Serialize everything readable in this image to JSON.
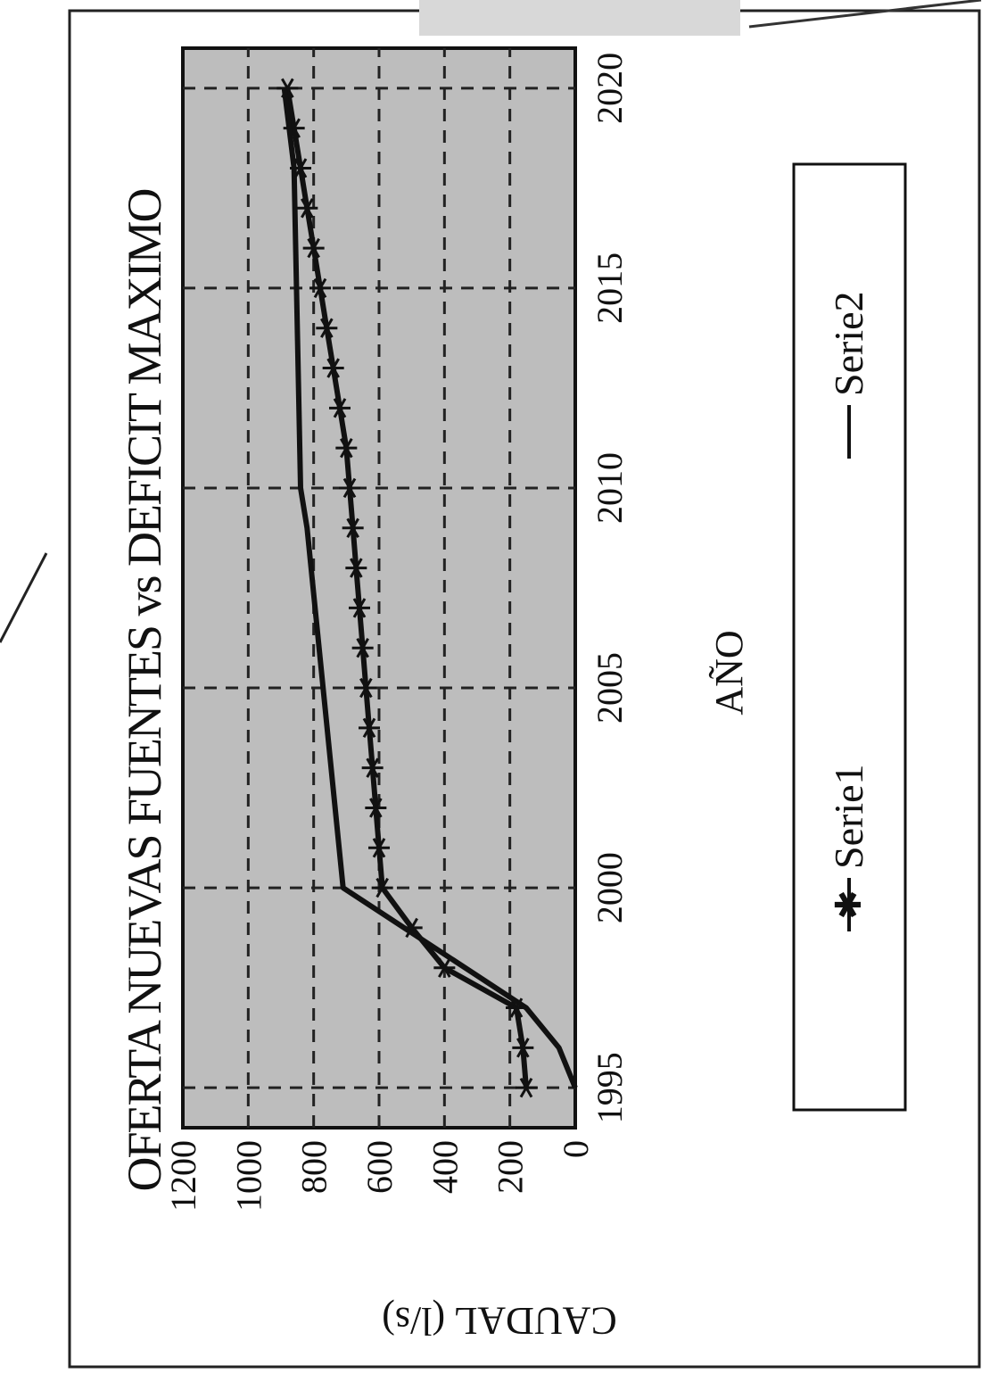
{
  "chart_data": {
    "type": "line",
    "title": "OFERTA NUEVAS FUENTES vs DEFICIT MAXIMO",
    "xlabel": "AÑO",
    "ylabel": "CAUDAL (l/s)",
    "x_ticks": [
      "1995",
      "2000",
      "2005",
      "2010",
      "2015",
      "2020"
    ],
    "y_ticks": [
      "0",
      "200",
      "400",
      "600",
      "800",
      "1000",
      "1200"
    ],
    "xlim": [
      1994,
      2021
    ],
    "ylim": [
      0,
      1200
    ],
    "grid": true,
    "legend_position": "bottom",
    "series": [
      {
        "name": "Serie1",
        "marker": "star",
        "x": [
          1995,
          1996,
          1997,
          1998,
          1999,
          2000,
          2001,
          2002,
          2003,
          2004,
          2005,
          2006,
          2007,
          2008,
          2009,
          2010,
          2011,
          2012,
          2013,
          2014,
          2015,
          2016,
          2017,
          2018,
          2019,
          2020
        ],
        "y": [
          150,
          160,
          180,
          400,
          500,
          590,
          600,
          610,
          620,
          630,
          640,
          650,
          660,
          670,
          680,
          690,
          700,
          720,
          740,
          760,
          780,
          800,
          820,
          840,
          860,
          880
        ]
      },
      {
        "name": "Serie2",
        "marker": "none",
        "x": [
          1995,
          1996,
          1997,
          2000,
          2009,
          2010,
          2018,
          2020
        ],
        "y": [
          0,
          50,
          150,
          710,
          820,
          840,
          860,
          890
        ]
      }
    ]
  },
  "colors": {
    "plot_background": "#bdbdbd",
    "line": "#111111",
    "frame": "#111111"
  }
}
